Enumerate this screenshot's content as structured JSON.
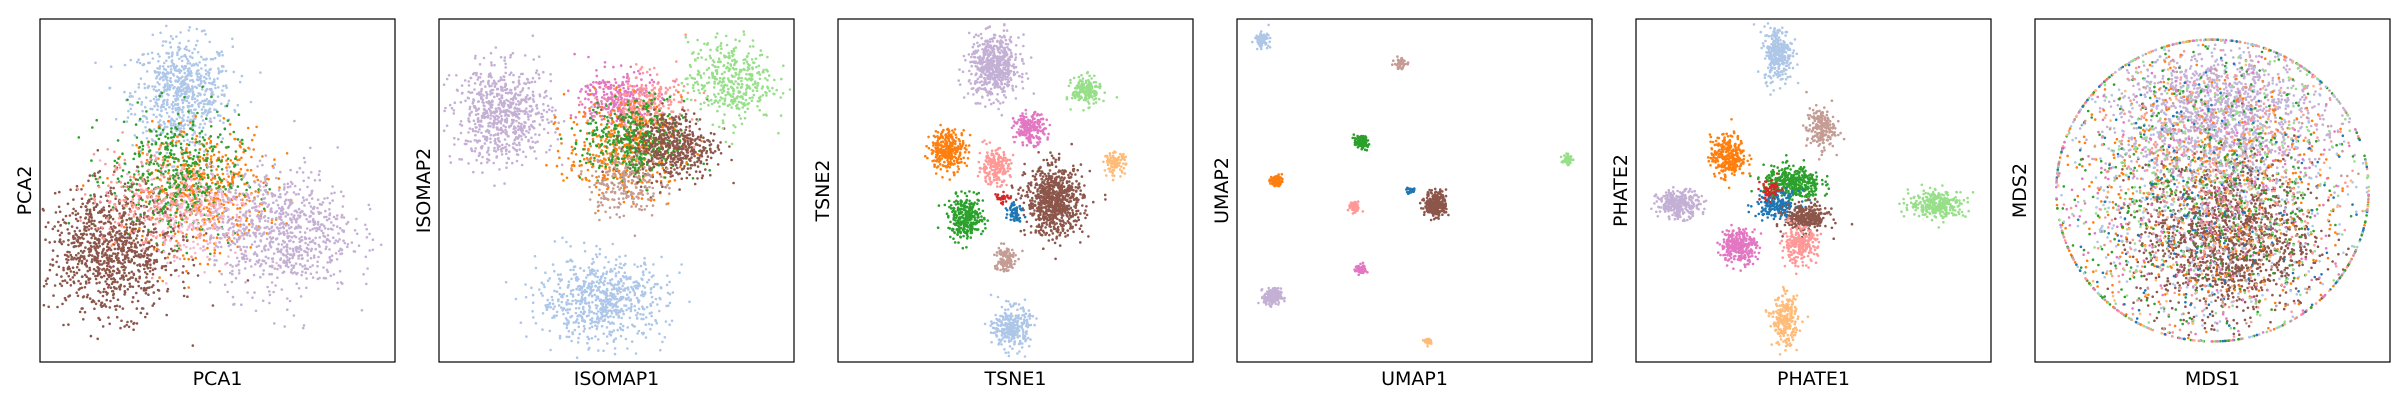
{
  "chart_data": [
    {
      "type": "scatter",
      "title": "",
      "xlabel": "PCA1",
      "ylabel": "PCA2",
      "xlim": [
        0,
        100
      ],
      "ylim": [
        0,
        100
      ],
      "grid": false,
      "ticks": "none",
      "series": [
        {
          "color": "#aec7e8",
          "cx": 40,
          "cy": 78,
          "sx": 7,
          "sy": 8,
          "n": 700
        },
        {
          "color": "#ff7f0e",
          "cx": 46,
          "cy": 50,
          "sx": 9,
          "sy": 9,
          "n": 500
        },
        {
          "color": "#2ca02c",
          "cx": 38,
          "cy": 54,
          "sx": 9,
          "sy": 9,
          "n": 500
        },
        {
          "color": "#f7b6d2",
          "cx": 44,
          "cy": 44,
          "sx": 8,
          "sy": 7,
          "n": 300
        },
        {
          "color": "#c5b0d5",
          "cx": 68,
          "cy": 38,
          "sx": 10,
          "sy": 9,
          "n": 800
        },
        {
          "color": "#8c564b",
          "cx": 20,
          "cy": 32,
          "sx": 9,
          "sy": 9,
          "n": 1000
        },
        {
          "color": "#ff9896",
          "cx": 30,
          "cy": 48,
          "sx": 8,
          "sy": 8,
          "n": 200
        }
      ]
    },
    {
      "type": "scatter",
      "title": "",
      "xlabel": "ISOMAP1",
      "ylabel": "ISOMAP2",
      "xlim": [
        0,
        100
      ],
      "ylim": [
        0,
        100
      ],
      "grid": false,
      "ticks": "none",
      "series": [
        {
          "color": "#aec7e8",
          "cx": 46,
          "cy": 18,
          "sx": 9,
          "sy": 6,
          "n": 700
        },
        {
          "color": "#c5b0d5",
          "cx": 18,
          "cy": 72,
          "sx": 7,
          "sy": 7,
          "n": 700
        },
        {
          "color": "#e377c2",
          "cx": 50,
          "cy": 77,
          "sx": 5,
          "sy": 4,
          "n": 300
        },
        {
          "color": "#ff9896",
          "cx": 58,
          "cy": 74,
          "sx": 6,
          "sy": 5,
          "n": 300
        },
        {
          "color": "#ff7f0e",
          "cx": 52,
          "cy": 62,
          "sx": 8,
          "sy": 7,
          "n": 400
        },
        {
          "color": "#2ca02c",
          "cx": 55,
          "cy": 64,
          "sx": 7,
          "sy": 6,
          "n": 400
        },
        {
          "color": "#8c564b",
          "cx": 66,
          "cy": 63,
          "sx": 6,
          "sy": 5,
          "n": 500
        },
        {
          "color": "#98df8a",
          "cx": 82,
          "cy": 82,
          "sx": 6,
          "sy": 6,
          "n": 400
        },
        {
          "color": "#c49c94",
          "cx": 52,
          "cy": 52,
          "sx": 5,
          "sy": 5,
          "n": 200
        }
      ]
    },
    {
      "type": "scatter",
      "title": "",
      "xlabel": "TSNE1",
      "ylabel": "TSNE2",
      "xlim": [
        0,
        100
      ],
      "ylim": [
        0,
        100
      ],
      "grid": false,
      "ticks": "none",
      "series": [
        {
          "color": "#c5b0d5",
          "cx": 44,
          "cy": 86,
          "sx": 3.5,
          "sy": 4.5,
          "n": 600
        },
        {
          "color": "#98df8a",
          "cx": 70,
          "cy": 79,
          "sx": 2,
          "sy": 2,
          "n": 200
        },
        {
          "color": "#e377c2",
          "cx": 54,
          "cy": 68,
          "sx": 2.2,
          "sy": 2.2,
          "n": 200
        },
        {
          "color": "#ff7f0e",
          "cx": 31,
          "cy": 62,
          "sx": 2.5,
          "sy": 3,
          "n": 300
        },
        {
          "color": "#ff9896",
          "cx": 44,
          "cy": 57,
          "sx": 2.2,
          "sy": 2.5,
          "n": 200
        },
        {
          "color": "#ffbb78",
          "cx": 78,
          "cy": 58,
          "sx": 1.5,
          "sy": 1.5,
          "n": 100
        },
        {
          "color": "#8c564b",
          "cx": 61,
          "cy": 47,
          "sx": 4,
          "sy": 5,
          "n": 800
        },
        {
          "color": "#2ca02c",
          "cx": 36,
          "cy": 42,
          "sx": 2.5,
          "sy": 3,
          "n": 300
        },
        {
          "color": "#1f77b4",
          "cx": 50,
          "cy": 44,
          "sx": 1,
          "sy": 1.5,
          "n": 60
        },
        {
          "color": "#d62728",
          "cx": 46,
          "cy": 48,
          "sx": 1,
          "sy": 1,
          "n": 30
        },
        {
          "color": "#c49c94",
          "cx": 47,
          "cy": 30,
          "sx": 1.5,
          "sy": 2,
          "n": 120
        },
        {
          "color": "#aec7e8",
          "cx": 49,
          "cy": 10,
          "sx": 2.5,
          "sy": 3,
          "n": 300
        }
      ]
    },
    {
      "type": "scatter",
      "title": "",
      "xlabel": "UMAP1",
      "ylabel": "UMAP2",
      "xlim": [
        0,
        100
      ],
      "ylim": [
        0,
        100
      ],
      "grid": false,
      "ticks": "none",
      "series": [
        {
          "color": "#aec7e8",
          "cx": 7,
          "cy": 94,
          "sx": 1,
          "sy": 1,
          "n": 100
        },
        {
          "color": "#c49c94",
          "cx": 46,
          "cy": 87,
          "sx": 0.8,
          "sy": 0.8,
          "n": 60
        },
        {
          "color": "#2ca02c",
          "cx": 35,
          "cy": 64,
          "sx": 1,
          "sy": 1,
          "n": 100
        },
        {
          "color": "#98df8a",
          "cx": 93,
          "cy": 59,
          "sx": 0.7,
          "sy": 0.7,
          "n": 50
        },
        {
          "color": "#ff7f0e",
          "cx": 11,
          "cy": 53,
          "sx": 0.8,
          "sy": 0.8,
          "n": 80
        },
        {
          "color": "#8c564b",
          "cx": 56,
          "cy": 46,
          "sx": 1.5,
          "sy": 1.8,
          "n": 300
        },
        {
          "color": "#1f77b4",
          "cx": 49,
          "cy": 50,
          "sx": 0.6,
          "sy": 0.5,
          "n": 30
        },
        {
          "color": "#ff9896",
          "cx": 33,
          "cy": 45,
          "sx": 0.8,
          "sy": 0.8,
          "n": 60
        },
        {
          "color": "#e377c2",
          "cx": 35,
          "cy": 27,
          "sx": 0.8,
          "sy": 0.8,
          "n": 60
        },
        {
          "color": "#c5b0d5",
          "cx": 10,
          "cy": 19,
          "sx": 1.2,
          "sy": 1.2,
          "n": 200
        },
        {
          "color": "#ffbb78",
          "cx": 54,
          "cy": 6,
          "sx": 0.6,
          "sy": 0.6,
          "n": 30
        }
      ]
    },
    {
      "type": "scatter",
      "title": "",
      "xlabel": "PHATE1",
      "ylabel": "PHATE2",
      "xlim": [
        0,
        100
      ],
      "ylim": [
        0,
        100
      ],
      "grid": false,
      "ticks": "none",
      "series": [
        {
          "color": "#aec7e8",
          "cx": 40,
          "cy": 90,
          "sx": 2,
          "sy": 4,
          "n": 300
        },
        {
          "color": "#c49c94",
          "cx": 52,
          "cy": 68,
          "sx": 2,
          "sy": 3,
          "n": 200
        },
        {
          "color": "#ff7f0e",
          "cx": 26,
          "cy": 60,
          "sx": 2.5,
          "sy": 3,
          "n": 300
        },
        {
          "color": "#2ca02c",
          "cx": 44,
          "cy": 52,
          "sx": 4,
          "sy": 2.5,
          "n": 400
        },
        {
          "color": "#1f77b4",
          "cx": 40,
          "cy": 46,
          "sx": 3,
          "sy": 2,
          "n": 200
        },
        {
          "color": "#8c564b",
          "cx": 48,
          "cy": 42,
          "sx": 3,
          "sy": 2,
          "n": 300
        },
        {
          "color": "#c5b0d5",
          "cx": 12,
          "cy": 46,
          "sx": 3,
          "sy": 2,
          "n": 300
        },
        {
          "color": "#e377c2",
          "cx": 29,
          "cy": 34,
          "sx": 2.5,
          "sy": 2.5,
          "n": 300
        },
        {
          "color": "#ff9896",
          "cx": 46,
          "cy": 34,
          "sx": 2.5,
          "sy": 2.5,
          "n": 250
        },
        {
          "color": "#98df8a",
          "cx": 85,
          "cy": 46,
          "sx": 4,
          "sy": 2,
          "n": 300
        },
        {
          "color": "#ffbb78",
          "cx": 42,
          "cy": 12,
          "sx": 1.8,
          "sy": 3.5,
          "n": 250
        },
        {
          "color": "#d62728",
          "cx": 38,
          "cy": 50,
          "sx": 1.5,
          "sy": 1.5,
          "n": 60
        }
      ]
    },
    {
      "type": "scatter",
      "title": "",
      "xlabel": "MDS1",
      "ylabel": "MDS2",
      "xlim": [
        0,
        100
      ],
      "ylim": [
        0,
        100
      ],
      "grid": false,
      "ticks": "none",
      "series": [
        {
          "color": "#c5b0d5",
          "cx": 52,
          "cy": 72,
          "sx": 14,
          "sy": 10,
          "n": 1400
        },
        {
          "color": "#8c564b",
          "cx": 54,
          "cy": 36,
          "sx": 12,
          "sy": 11,
          "n": 1400
        },
        {
          "color": "#ff7f0e",
          "cx": 48,
          "cy": 50,
          "sx": 22,
          "sy": 22,
          "n": 500
        },
        {
          "color": "#2ca02c",
          "cx": 48,
          "cy": 50,
          "sx": 22,
          "sy": 22,
          "n": 500
        },
        {
          "color": "#aec7e8",
          "cx": 48,
          "cy": 50,
          "sx": 22,
          "sy": 22,
          "n": 500
        },
        {
          "color": "#ff9896",
          "cx": 48,
          "cy": 50,
          "sx": 22,
          "sy": 22,
          "n": 400
        },
        {
          "color": "#e377c2",
          "cx": 48,
          "cy": 50,
          "sx": 22,
          "sy": 22,
          "n": 300
        },
        {
          "color": "#98df8a",
          "cx": 50,
          "cy": 50,
          "sx": 22,
          "sy": 22,
          "n": 300
        },
        {
          "color": "#1f77b4",
          "cx": 50,
          "cy": 50,
          "sx": 22,
          "sy": 22,
          "n": 200
        },
        {
          "color": "#ffbb78",
          "cx": 50,
          "cy": 50,
          "sx": 22,
          "sy": 22,
          "n": 150
        },
        {
          "color": "#c49c94",
          "cx": 50,
          "cy": 50,
          "sx": 22,
          "sy": 22,
          "n": 150
        }
      ]
    }
  ]
}
